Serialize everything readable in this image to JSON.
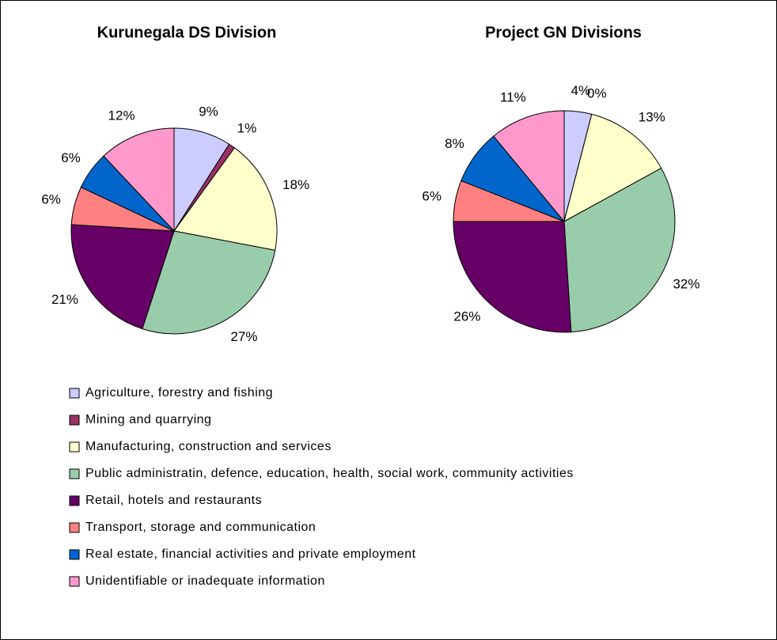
{
  "chart_data": {
    "type": "pie",
    "categories": [
      "Agriculture, forestry and fishing",
      "Mining and quarrying",
      "Manufacturing, construction and services",
      "Public administratin, defence, education, health, social work, community activities",
      "Retail, hotels and restaurants",
      "Transport, storage and communication",
      "Real estate, financial activities and private employment",
      "Unidentifiable or inadequate information"
    ],
    "colors": [
      "#ccccff",
      "#993366",
      "#ffffcc",
      "#99ccaa",
      "#660066",
      "#ff8080",
      "#0066cc",
      "#ff99cc"
    ],
    "charts": [
      {
        "title": "Kurunegala DS Division",
        "values": [
          9,
          1,
          18,
          27,
          21,
          6,
          6,
          12
        ],
        "value_labels": [
          "9%",
          "1%",
          "18%",
          "27%",
          "21%",
          "6%",
          "6%",
          "12%"
        ]
      },
      {
        "title": "Project GN Divisions",
        "values": [
          4,
          0,
          13,
          32,
          26,
          6,
          8,
          11
        ],
        "value_labels": [
          "4%",
          "0%",
          "13%",
          "32%",
          "26%",
          "6%",
          "8%",
          "11%"
        ]
      }
    ]
  }
}
